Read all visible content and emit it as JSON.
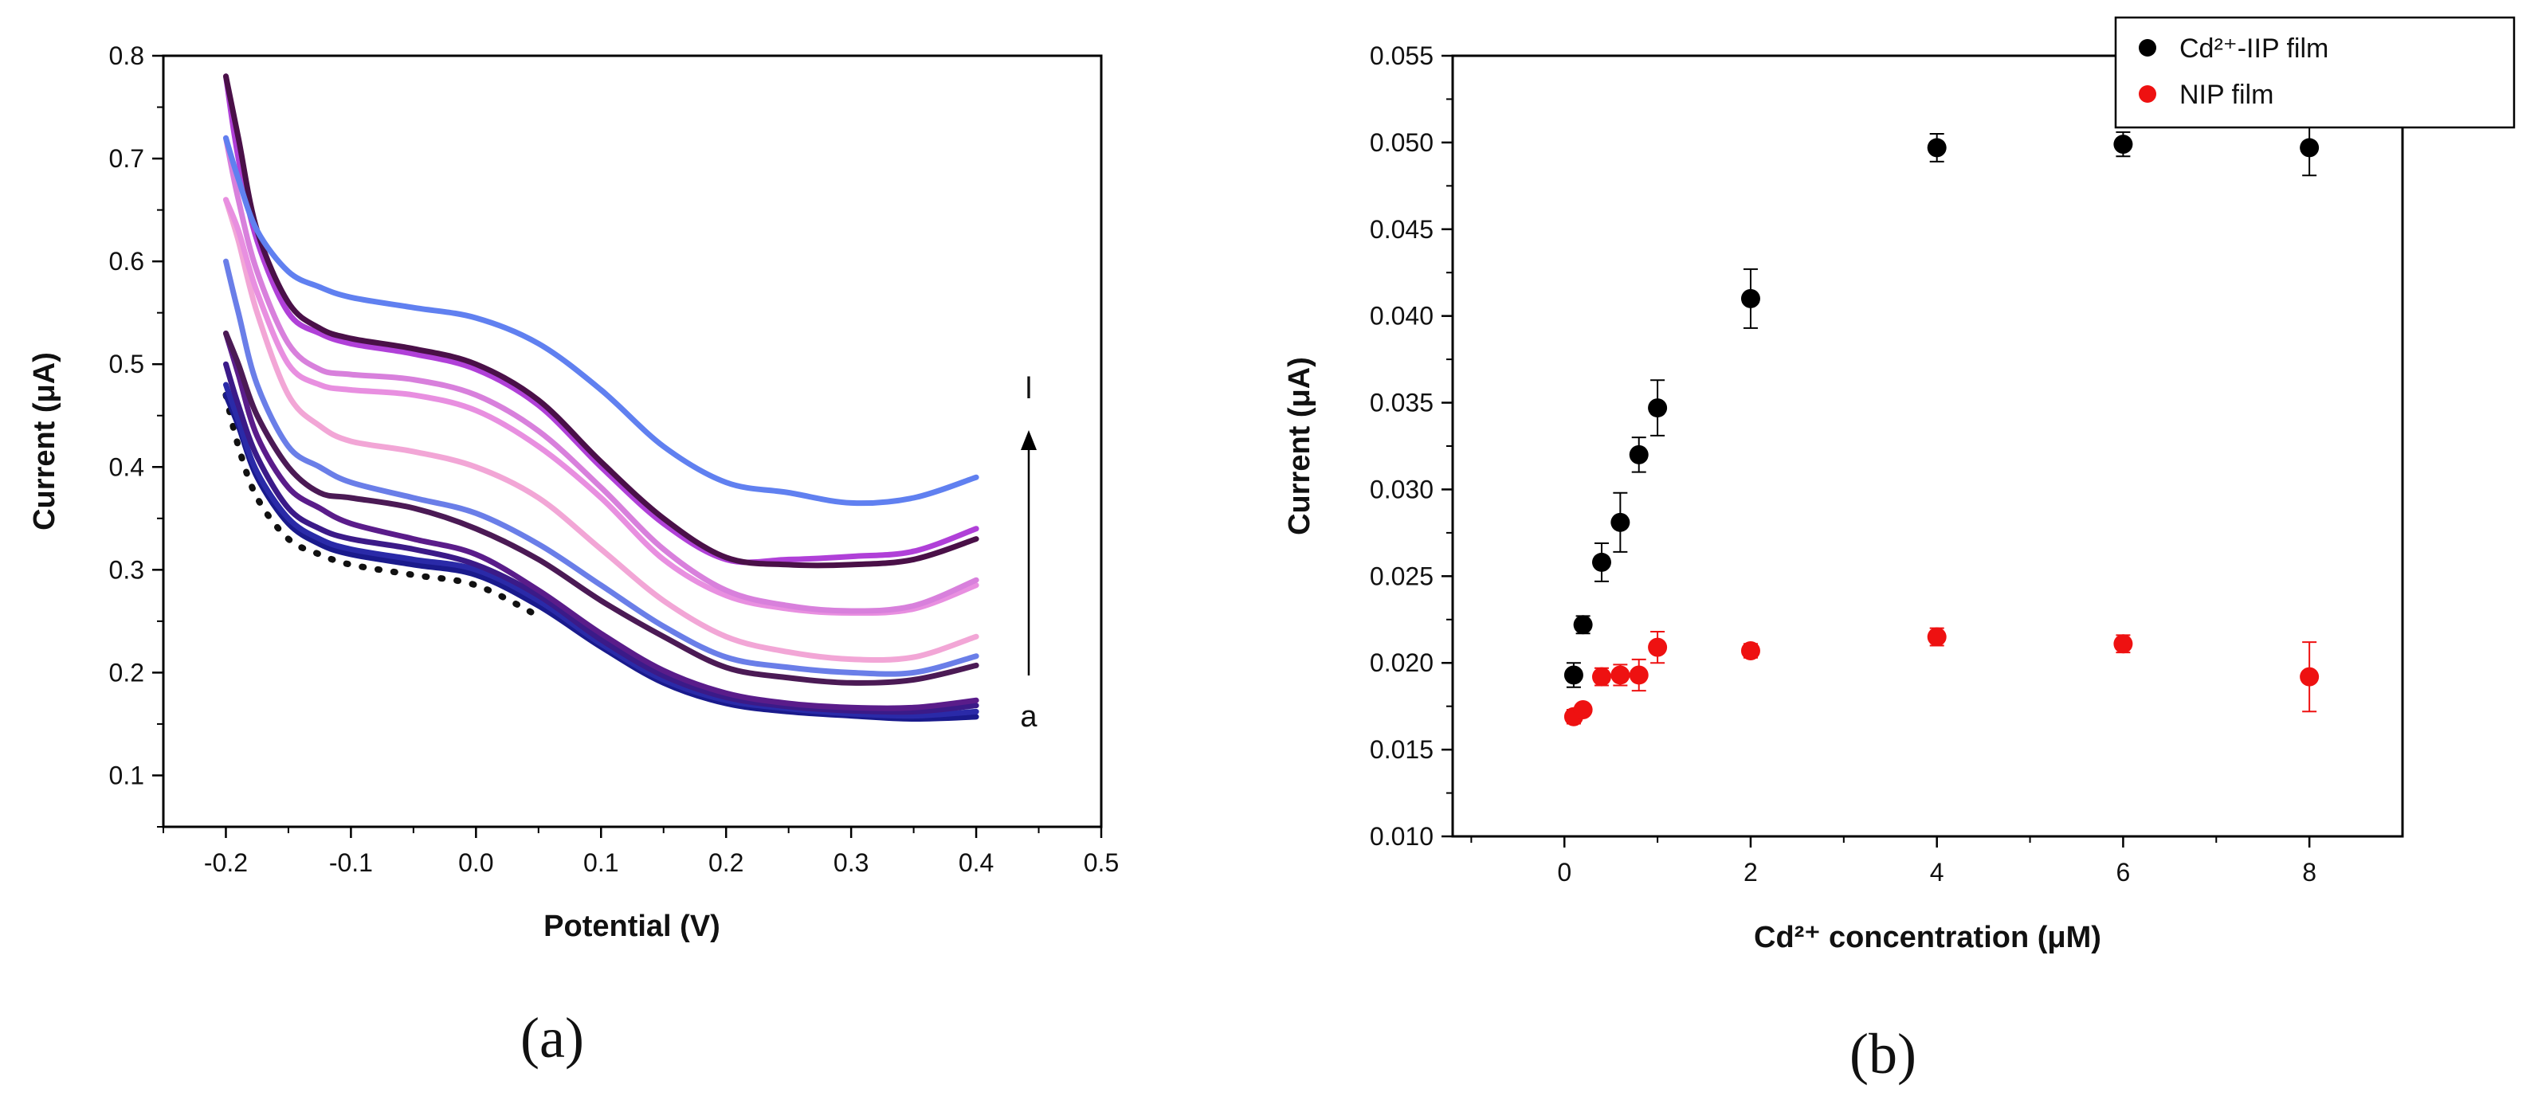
{
  "chart_data": [
    {
      "type": "line",
      "panel_label": "(a)",
      "xlabel": "Potential (V)",
      "ylabel": "Current (μA)",
      "xlim": [
        -0.25,
        0.5
      ],
      "ylim": [
        0.05,
        0.8
      ],
      "x_ticks": [
        "-0.2",
        "-0.1",
        "0.0",
        "0.1",
        "0.2",
        "0.3",
        "0.4",
        "0.5"
      ],
      "y_ticks": [
        "0.1",
        "0.2",
        "0.3",
        "0.4",
        "0.5",
        "0.6",
        "0.7",
        "0.8"
      ],
      "annotations": {
        "top": "l",
        "bottom": "a"
      },
      "x": [
        -0.2,
        -0.19,
        -0.175,
        -0.15,
        -0.125,
        -0.1,
        -0.05,
        0.0,
        0.05,
        0.1,
        0.15,
        0.2,
        0.25,
        0.3,
        0.35,
        0.4
      ],
      "series": [
        {
          "style": "dotted",
          "color": "#111111",
          "values": [
            0.47,
            0.42,
            0.37,
            0.33,
            0.315,
            0.305,
            0.295,
            0.285,
            0.255,
            null,
            null,
            null,
            null,
            null,
            null,
            null
          ]
        },
        {
          "color": "#1a1a8c",
          "values": [
            0.47,
            0.44,
            0.39,
            0.345,
            0.325,
            0.315,
            0.305,
            0.295,
            0.265,
            0.225,
            0.19,
            0.17,
            0.162,
            0.158,
            0.155,
            0.157
          ]
        },
        {
          "color": "#2a2aa8",
          "values": [
            0.48,
            0.445,
            0.395,
            0.35,
            0.33,
            0.32,
            0.31,
            0.3,
            0.27,
            0.228,
            0.193,
            0.173,
            0.165,
            0.16,
            0.158,
            0.162
          ]
        },
        {
          "color": "#3b1a88",
          "values": [
            0.5,
            0.46,
            0.41,
            0.36,
            0.34,
            0.33,
            0.32,
            0.305,
            0.275,
            0.232,
            0.197,
            0.176,
            0.167,
            0.163,
            0.162,
            0.168
          ]
        },
        {
          "color": "#5a1c8a",
          "values": [
            0.53,
            0.49,
            0.43,
            0.38,
            0.36,
            0.345,
            0.33,
            0.315,
            0.28,
            0.238,
            0.202,
            0.18,
            0.17,
            0.166,
            0.166,
            0.173
          ]
        },
        {
          "color": "#4b1a55",
          "values": [
            0.53,
            0.5,
            0.45,
            0.4,
            0.375,
            0.37,
            0.36,
            0.34,
            0.31,
            0.27,
            0.235,
            0.205,
            0.195,
            0.19,
            0.193,
            0.207
          ]
        },
        {
          "color": "#6a7ee8",
          "values": [
            0.6,
            0.55,
            0.48,
            0.42,
            0.4,
            0.385,
            0.37,
            0.355,
            0.325,
            0.285,
            0.245,
            0.215,
            0.205,
            0.2,
            0.2,
            0.216
          ]
        },
        {
          "color": "#f2a6d6",
          "values": [
            0.66,
            0.62,
            0.55,
            0.47,
            0.44,
            0.425,
            0.415,
            0.4,
            0.37,
            0.32,
            0.27,
            0.235,
            0.22,
            0.213,
            0.215,
            0.235
          ]
        },
        {
          "color": "#e88fe0",
          "values": [
            0.66,
            0.63,
            0.57,
            0.5,
            0.48,
            0.475,
            0.47,
            0.455,
            0.42,
            0.37,
            0.31,
            0.275,
            0.262,
            0.258,
            0.262,
            0.285
          ]
        },
        {
          "color": "#d880dc",
          "values": [
            0.72,
            0.66,
            0.59,
            0.52,
            0.495,
            0.49,
            0.485,
            0.47,
            0.435,
            0.38,
            0.32,
            0.28,
            0.265,
            0.26,
            0.265,
            0.29
          ]
        },
        {
          "color": "#b040d8",
          "values": [
            0.78,
            0.7,
            0.62,
            0.55,
            0.53,
            0.52,
            0.51,
            0.495,
            0.46,
            0.4,
            0.345,
            0.31,
            0.31,
            0.313,
            0.318,
            0.34
          ]
        },
        {
          "color": "#4a1048",
          "values": [
            0.78,
            0.72,
            0.63,
            0.56,
            0.535,
            0.525,
            0.515,
            0.5,
            0.465,
            0.405,
            0.35,
            0.312,
            0.305,
            0.305,
            0.31,
            0.33
          ]
        },
        {
          "color": "#6080f0",
          "values": [
            0.72,
            0.68,
            0.63,
            0.59,
            0.575,
            0.565,
            0.555,
            0.545,
            0.52,
            0.475,
            0.42,
            0.385,
            0.375,
            0.365,
            0.37,
            0.39
          ]
        }
      ]
    },
    {
      "type": "scatter",
      "panel_label": "(b)",
      "xlabel": "Cd²⁺ concentration (μM)",
      "ylabel": "Current (μA)",
      "xlim": [
        -1.2,
        9.0
      ],
      "ylim": [
        0.01,
        0.055
      ],
      "x_ticks": [
        "0",
        "2",
        "4",
        "6",
        "8"
      ],
      "y_ticks": [
        "0.010",
        "0.015",
        "0.020",
        "0.025",
        "0.030",
        "0.035",
        "0.040",
        "0.045",
        "0.050",
        "0.055"
      ],
      "legend_position": "top-right",
      "series": [
        {
          "name": "Cd²⁺-IIP film",
          "color": "#000000",
          "x": [
            0.1,
            0.2,
            0.4,
            0.6,
            0.8,
            1.0,
            2.0,
            4.0,
            6.0,
            8.0
          ],
          "y": [
            0.0193,
            0.0222,
            0.0258,
            0.0281,
            0.032,
            0.0347,
            0.041,
            0.0497,
            0.0499,
            0.0497
          ],
          "err": [
            0.0007,
            0.0005,
            0.0011,
            0.0017,
            0.001,
            0.0016,
            0.0017,
            0.0008,
            0.0007,
            0.0016
          ]
        },
        {
          "name": "NIP film",
          "color": "#ee1111",
          "x": [
            0.1,
            0.2,
            0.4,
            0.6,
            0.8,
            1.0,
            2.0,
            4.0,
            6.0,
            8.0
          ],
          "y": [
            0.0169,
            0.0173,
            0.0192,
            0.0193,
            0.0193,
            0.0209,
            0.0207,
            0.0215,
            0.0211,
            0.0192
          ],
          "err": [
            0.0004,
            0.0003,
            0.0005,
            0.0006,
            0.0009,
            0.0009,
            0.0004,
            0.0005,
            0.0005,
            0.002
          ]
        }
      ]
    }
  ]
}
